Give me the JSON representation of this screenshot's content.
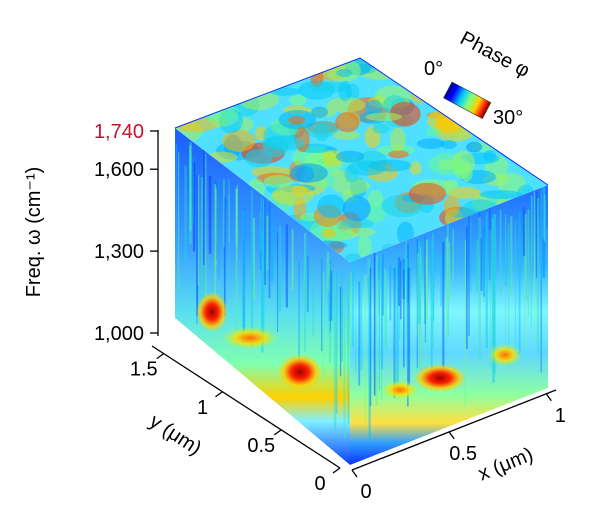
{
  "chart_data": {
    "type": "heatmap",
    "subtype": "3d-cube",
    "z_axis": {
      "label": "Freq. ω (cm⁻¹)",
      "ticks": [
        "1,000",
        "1,300",
        "1,600",
        "1,740"
      ],
      "tick_values": [
        1000,
        1300,
        1600,
        1740
      ],
      "highlight_tick": "1,740",
      "highlight_color": "#c8102e"
    },
    "y_axis": {
      "label": "y (μm)",
      "ticks": [
        "0",
        "0.5",
        "1",
        "1.5"
      ],
      "tick_values": [
        0,
        0.5,
        1,
        1.5
      ]
    },
    "x_axis": {
      "label": "x (μm)",
      "ticks": [
        "0",
        "0.5",
        "1"
      ],
      "tick_values": [
        0,
        0.5,
        1
      ]
    },
    "colorbar": {
      "title": "Phase φ",
      "min_label": "0°",
      "max_label": "30°",
      "range": [
        0,
        30
      ],
      "colormap": "jet"
    },
    "bands": {
      "description_values_deg": {
        "low_freq_hotspot": 28,
        "mid_band": 14,
        "background": 4
      }
    }
  },
  "colors": {
    "jet_low": "#0000ff",
    "jet_mid": "#00ffff",
    "jet_high": "#ff0000",
    "highlight": "#c8102e"
  }
}
